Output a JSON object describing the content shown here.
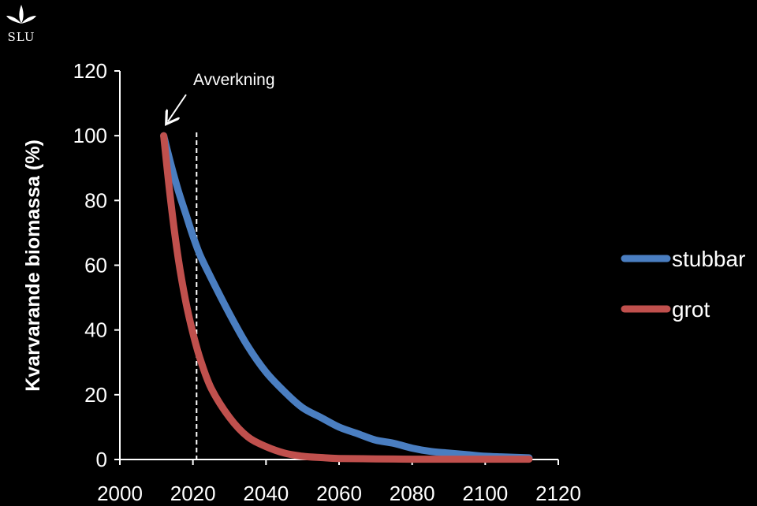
{
  "logo": {
    "text": "SLU"
  },
  "chart_data": {
    "type": "line",
    "title": "",
    "xlabel": "",
    "ylabel": "Kvarvarande biomassa (%)",
    "xlim": [
      2000,
      2120
    ],
    "ylim": [
      0,
      120
    ],
    "xticks": [
      2000,
      2020,
      2040,
      2060,
      2080,
      2100,
      2120
    ],
    "yticks": [
      0,
      20,
      40,
      60,
      80,
      100,
      120
    ],
    "grid": false,
    "legend_position": "right",
    "annotation": {
      "text": "Avverkning",
      "x": 2012,
      "y": 100
    },
    "reference_line": {
      "x": 2021,
      "style": "dashed"
    },
    "series": [
      {
        "name": "stubbar",
        "color": "#4a7ec1",
        "x": [
          2012,
          2014,
          2016,
          2018,
          2020,
          2022,
          2025,
          2030,
          2035,
          2040,
          2045,
          2050,
          2055,
          2060,
          2065,
          2070,
          2075,
          2080,
          2085,
          2090,
          2095,
          2100,
          2105,
          2112
        ],
        "values": [
          100,
          91,
          83,
          76,
          69,
          63,
          56,
          45,
          35,
          27,
          21,
          16,
          13,
          10,
          8,
          6,
          5,
          3.5,
          2.5,
          2,
          1.5,
          1,
          0.8,
          0.5
        ]
      },
      {
        "name": "grot",
        "color": "#c0504d",
        "x": [
          2012,
          2014,
          2016,
          2018,
          2020,
          2022,
          2025,
          2030,
          2035,
          2040,
          2045,
          2050,
          2055,
          2060,
          2070,
          2080,
          2090,
          2100,
          2112
        ],
        "values": [
          100,
          79,
          62,
          49,
          39,
          31,
          22,
          13,
          7,
          4,
          2,
          1,
          0.6,
          0.3,
          0.2,
          0.1,
          0.1,
          0.1,
          0.1
        ]
      }
    ]
  }
}
